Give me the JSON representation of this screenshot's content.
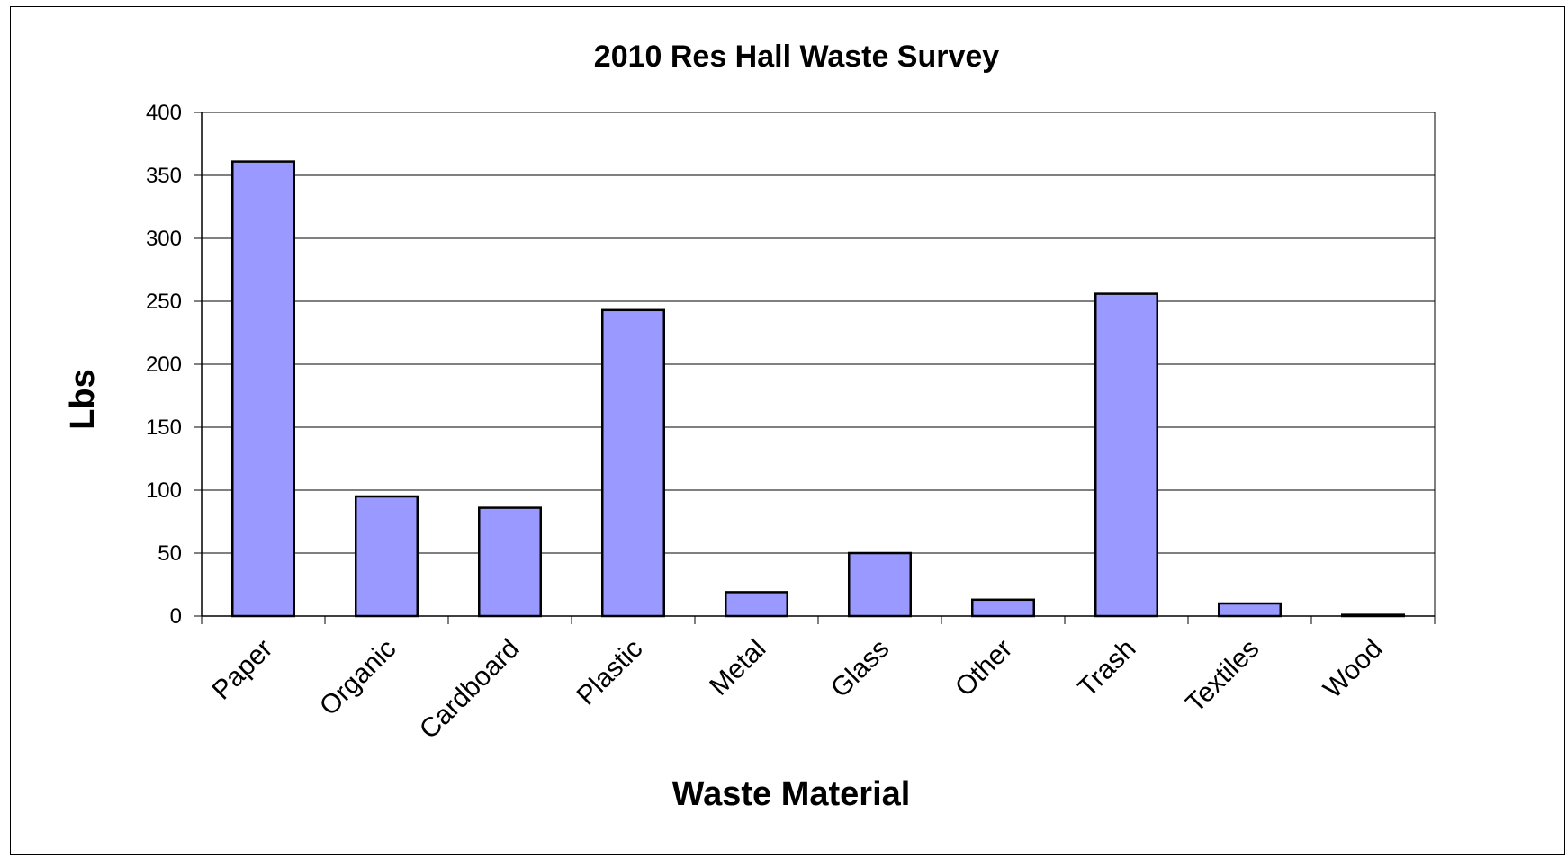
{
  "chart_data": {
    "type": "bar",
    "title": "2010 Res Hall Waste Survey",
    "xlabel": "Waste Material",
    "ylabel": "Lbs",
    "categories": [
      "Paper",
      "Organic",
      "Cardboard",
      "Plastic",
      "Metal",
      "Glass",
      "Other",
      "Trash",
      "Textiles",
      "Wood"
    ],
    "values": [
      361,
      95,
      86,
      243,
      19,
      50,
      13,
      256,
      10,
      1
    ],
    "ylim": [
      0,
      400
    ],
    "yticks": [
      0,
      50,
      100,
      150,
      200,
      250,
      300,
      350,
      400
    ],
    "grid": true,
    "legend": "none",
    "colors": {
      "bar_fill": "#9999ff",
      "bar_stroke": "#000000",
      "grid": "#000000",
      "background": "#ffffff"
    }
  }
}
